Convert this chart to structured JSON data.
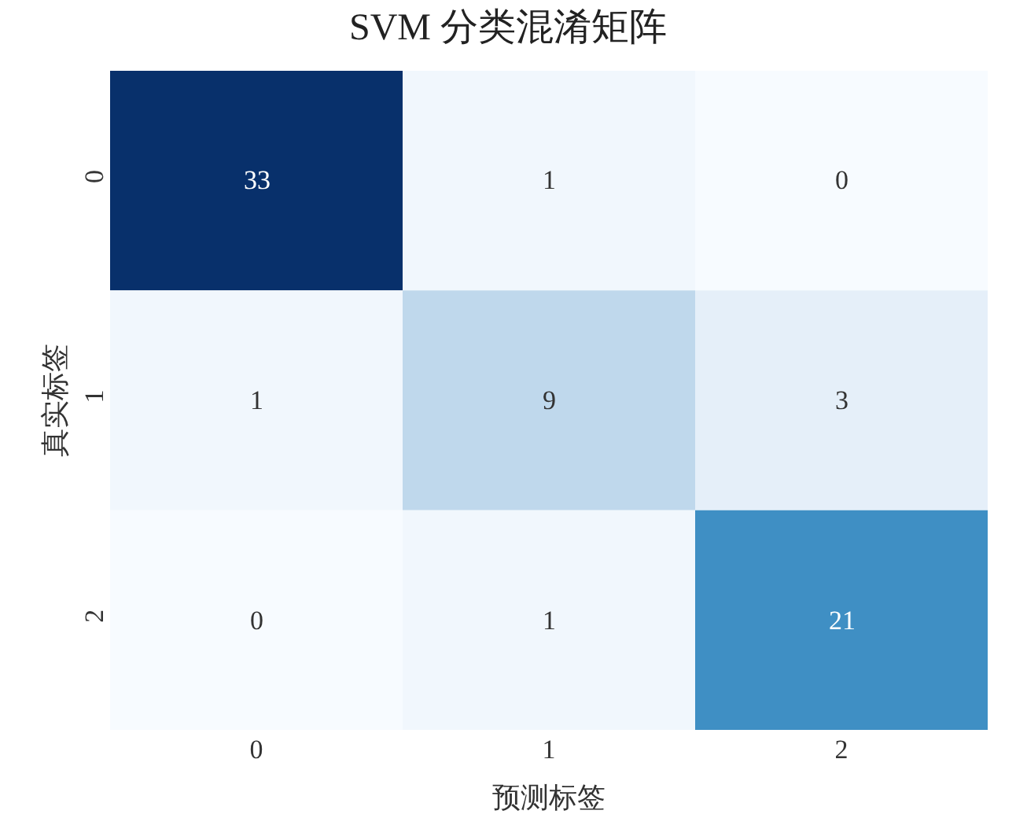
{
  "chart_data": {
    "type": "heatmap",
    "title": "SVM 分类混淆矩阵",
    "xlabel": "预测标签",
    "ylabel": "真实标签",
    "categories": [
      "0",
      "1",
      "2"
    ],
    "y_categories": [
      "0",
      "1",
      "2"
    ],
    "cells": [
      [
        33,
        1,
        0
      ],
      [
        1,
        9,
        3
      ],
      [
        0,
        1,
        21
      ]
    ],
    "data_labels": true
  }
}
